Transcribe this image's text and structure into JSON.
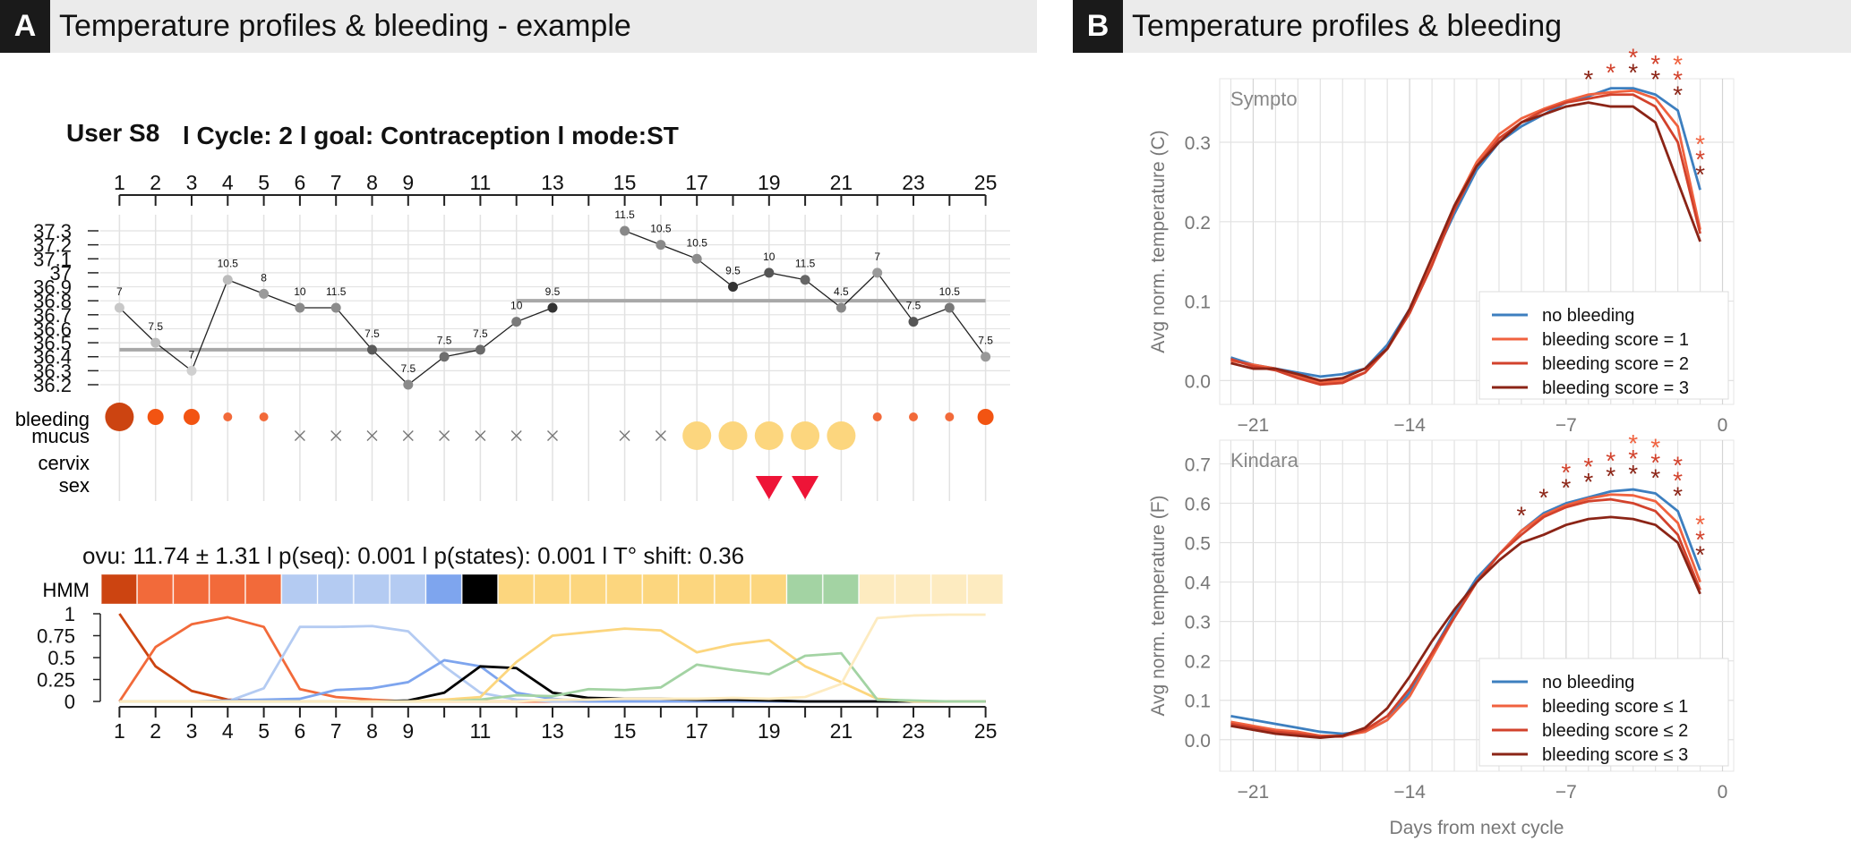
{
  "panelA": {
    "letter": "A",
    "title": "Temperature profiles & bleeding - example",
    "user_line": {
      "user": "User S8",
      "cycle": "l Cycle: 2 l goal: Contraception  l  mode:ST"
    },
    "stats_line": "ovu:  11.74  ±  1.31  l p(seq):  0.001  l p(states):  0.001  l T° shift:  0.36",
    "row_labels": [
      "bleeding",
      "mucus",
      "cervix",
      "sex"
    ],
    "hmm_label": "HMM"
  },
  "panelB": {
    "letter": "B",
    "title": "Temperature profiles & bleeding"
  },
  "chart_data": [
    {
      "id": "cycle_temperature",
      "type": "line",
      "x_ticks_labeled": [
        1,
        2,
        3,
        4,
        5,
        6,
        7,
        8,
        9,
        11,
        13,
        15,
        17,
        19,
        21,
        23,
        25
      ],
      "y_tick_labels": [
        "37.3",
        "37.2",
        "37.1",
        "37",
        "36.9",
        "36.8",
        "36.7",
        "36.6",
        "36.5",
        "36.4",
        "36.3",
        "36.2"
      ],
      "ylim": [
        36.2,
        37.3
      ],
      "days": [
        1,
        2,
        3,
        4,
        5,
        6,
        7,
        8,
        9,
        10,
        11,
        12,
        13,
        15,
        16,
        17,
        18,
        19,
        20,
        21,
        22,
        23,
        24,
        25
      ],
      "temps": [
        36.75,
        36.5,
        36.3,
        36.95,
        36.85,
        36.75,
        36.75,
        36.45,
        36.2,
        36.4,
        36.45,
        36.65,
        36.75,
        37.3,
        37.2,
        37.1,
        36.9,
        37.0,
        36.95,
        36.75,
        37.0,
        36.65,
        36.75,
        36.4
      ],
      "point_labels": [
        "7",
        "7.5",
        "7",
        "10.5",
        "8",
        "10",
        "11.5",
        "7.5",
        "7.5",
        "7.5",
        "7.5",
        "10",
        "9.5",
        "11.5",
        "10.5",
        "10.5",
        "9.5",
        "10",
        "11.5",
        "4.5",
        "7",
        "7.5",
        "10.5",
        "7.5"
      ],
      "point_shades": [
        "#c8c8c8",
        "#bdbdbd",
        "#d0d0d0",
        "#bcbcbc",
        "#9a9a9a",
        "#8a8a8a",
        "#8c8c8c",
        "#5a5a5a",
        "#8a8a8a",
        "#6e6e6e",
        "#6a6a6a",
        "#7a7a7a",
        "#333333",
        "#888888",
        "#8a8a8a",
        "#8c8c8c",
        "#333333",
        "#555555",
        "#666666",
        "#888888",
        "#9a9a9a",
        "#555555",
        "#777777",
        "#999999"
      ],
      "baselines": [
        {
          "from": 1,
          "to": 11,
          "temp": 36.45
        },
        {
          "from": 12,
          "to": 25,
          "temp": 36.8
        }
      ]
    },
    {
      "id": "cycle_observations",
      "type": "table",
      "bleeding": [
        {
          "day": 1,
          "level": 3
        },
        {
          "day": 2,
          "level": 2
        },
        {
          "day": 3,
          "level": 2
        },
        {
          "day": 4,
          "level": 1
        },
        {
          "day": 5,
          "level": 1
        },
        {
          "day": 22,
          "level": 1
        },
        {
          "day": 23,
          "level": 1
        },
        {
          "day": 24,
          "level": 1
        },
        {
          "day": 25,
          "level": 2
        }
      ],
      "mucus_x_days": [
        6,
        7,
        8,
        9,
        10,
        11,
        12,
        13,
        15,
        16
      ],
      "mucus_fertile_days": [
        17,
        18,
        19,
        20,
        21
      ],
      "sex_days": [
        19,
        20
      ]
    },
    {
      "id": "hmm_states",
      "type": "heatmap",
      "cells": [
        "#cc4411",
        "#f26a3a",
        "#f26a3a",
        "#f26a3a",
        "#f26a3a",
        "#b4cbf2",
        "#b4cbf2",
        "#b4cbf2",
        "#b4cbf2",
        "#7ea5ee",
        "#000000",
        "#fcd67e",
        "#fcd67e",
        "#fcd67e",
        "#fcd67e",
        "#fcd67e",
        "#fcd67e",
        "#fcd67e",
        "#fcd67e",
        "#a3d3a3",
        "#a3d3a3",
        "#fdebc0",
        "#fdebc0",
        "#fdebc0",
        "#fdebc0"
      ]
    },
    {
      "id": "hmm_probabilities",
      "type": "line",
      "y_tick_labels": [
        "1",
        "0.75",
        "0.5",
        "0.25",
        "0"
      ],
      "ylim": [
        0,
        1
      ],
      "x_ticks_labeled": [
        1,
        2,
        3,
        4,
        5,
        6,
        7,
        8,
        9,
        11,
        13,
        15,
        17,
        19,
        21,
        23,
        25
      ],
      "series": [
        {
          "color": "#cc4411",
          "values": [
            1,
            0.4,
            0.12,
            0.02,
            0.01,
            0,
            0,
            0,
            0,
            0,
            0,
            0,
            0,
            0,
            0,
            0,
            0,
            0,
            0,
            0,
            0,
            0,
            0,
            0,
            0
          ]
        },
        {
          "color": "#f26a3a",
          "values": [
            0,
            0.62,
            0.88,
            0.96,
            0.85,
            0.14,
            0.05,
            0.02,
            0,
            0,
            0,
            0,
            0,
            0,
            0,
            0,
            0,
            0,
            0,
            0,
            0,
            0,
            0,
            0,
            0
          ]
        },
        {
          "color": "#b4cbf2",
          "values": [
            0,
            0,
            0,
            0,
            0.15,
            0.85,
            0.85,
            0.86,
            0.8,
            0.4,
            0.1,
            0.02,
            0,
            0,
            0,
            0,
            0,
            0,
            0,
            0,
            0,
            0,
            0,
            0,
            0
          ]
        },
        {
          "color": "#7ea5ee",
          "values": [
            0,
            0,
            0,
            0.01,
            0.02,
            0.03,
            0.13,
            0.15,
            0.22,
            0.47,
            0.4,
            0.1,
            0.03,
            0,
            0,
            0,
            0,
            0,
            0,
            0,
            0,
            0,
            0,
            0,
            0
          ]
        },
        {
          "color": "#000000",
          "values": [
            0,
            0,
            0,
            0,
            0,
            0,
            0,
            0,
            0.01,
            0.1,
            0.4,
            0.38,
            0.1,
            0.04,
            0.03,
            0.03,
            0.02,
            0.02,
            0.01,
            0,
            0,
            0,
            0,
            0,
            0
          ]
        },
        {
          "color": "#fcd67e",
          "values": [
            0,
            0,
            0,
            0,
            0,
            0,
            0,
            0,
            0,
            0.02,
            0.05,
            0.45,
            0.75,
            0.79,
            0.83,
            0.81,
            0.56,
            0.65,
            0.7,
            0.4,
            0.22,
            0.03,
            0,
            0,
            0
          ]
        },
        {
          "color": "#a3d3a3",
          "values": [
            0,
            0,
            0,
            0,
            0,
            0,
            0,
            0,
            0,
            0,
            0.02,
            0.07,
            0.06,
            0.14,
            0.13,
            0.16,
            0.42,
            0.36,
            0.31,
            0.52,
            0.55,
            0.02,
            0.01,
            0,
            0
          ]
        },
        {
          "color": "#fdebc0",
          "values": [
            0,
            0,
            0,
            0,
            0,
            0,
            0,
            0,
            0,
            0,
            0,
            0,
            0.02,
            0.02,
            0.03,
            0.03,
            0.03,
            0.04,
            0.03,
            0.05,
            0.2,
            0.95,
            0.98,
            0.99,
            0.99
          ]
        }
      ]
    },
    {
      "id": "sympto",
      "type": "line",
      "title": "Sympto",
      "ylabel": "Avg norm. temperature (C)",
      "ylim": [
        -0.03,
        0.38
      ],
      "y_ticks": [
        0.0,
        0.1,
        0.2,
        0.3
      ],
      "y_tick_labels": [
        "0.0",
        "0.1",
        "0.2",
        "0.3"
      ],
      "xlim": [
        -22.5,
        0.5
      ],
      "x_ticks": [
        -21,
        -14,
        -7,
        0
      ],
      "x_tick_labels": [
        "−21",
        "−14",
        "−7",
        "0"
      ],
      "x": [
        -22,
        -21,
        -20,
        -19,
        -18,
        -17,
        -16,
        -15,
        -14,
        -13,
        -12,
        -11,
        -10,
        -9,
        -8,
        -7,
        -6,
        -5,
        -4,
        -3,
        -2,
        -1
      ],
      "series": [
        {
          "name": "no bleeding",
          "color": "#3d7fbf",
          "values": [
            0.029,
            0.02,
            0.015,
            0.01,
            0.005,
            0.008,
            0.015,
            0.045,
            0.09,
            0.15,
            0.21,
            0.265,
            0.3,
            0.32,
            0.335,
            0.35,
            0.358,
            0.368,
            0.368,
            0.36,
            0.34,
            0.24
          ]
        },
        {
          "name": "bleeding score =  1",
          "color": "#f0623f",
          "values": [
            0.025,
            0.02,
            0.015,
            0.005,
            -0.003,
            0.0,
            0.01,
            0.04,
            0.085,
            0.15,
            0.22,
            0.275,
            0.31,
            0.33,
            0.342,
            0.352,
            0.36,
            0.363,
            0.365,
            0.355,
            0.32,
            0.19
          ]
        },
        {
          "name": "bleeding score =  2",
          "color": "#d2422c",
          "values": [
            0.027,
            0.018,
            0.013,
            0.003,
            -0.005,
            -0.003,
            0.01,
            0.04,
            0.085,
            0.145,
            0.215,
            0.27,
            0.305,
            0.325,
            0.34,
            0.35,
            0.355,
            0.36,
            0.36,
            0.345,
            0.3,
            0.185
          ]
        },
        {
          "name": "bleeding score =  3",
          "color": "#8b2416",
          "values": [
            0.022,
            0.015,
            0.015,
            0.008,
            0.0,
            0.003,
            0.015,
            0.04,
            0.09,
            0.155,
            0.22,
            0.27,
            0.3,
            0.325,
            0.335,
            0.345,
            0.35,
            0.345,
            0.345,
            0.325,
            0.25,
            0.175
          ]
        }
      ],
      "asterisks": [
        {
          "x": -6,
          "colors": [
            "#8b2416"
          ]
        },
        {
          "x": -5,
          "colors": [
            "#d2422c"
          ]
        },
        {
          "x": -4,
          "colors": [
            "#d2422c",
            "#8b2416"
          ]
        },
        {
          "x": -3,
          "colors": [
            "#d2422c",
            "#8b2416"
          ]
        },
        {
          "x": -2,
          "colors": [
            "#f0623f",
            "#d2422c",
            "#8b2416"
          ]
        },
        {
          "x": -1,
          "colors": [
            "#f0623f",
            "#d2422c",
            "#8b2416"
          ]
        }
      ],
      "legend": "bottom-right"
    },
    {
      "id": "kindara",
      "type": "line",
      "title": "Kindara",
      "ylabel": "Avg norm. temperature (F)",
      "xlabel": "Days from next cycle",
      "ylim": [
        -0.08,
        0.76
      ],
      "y_ticks": [
        0.0,
        0.1,
        0.2,
        0.3,
        0.4,
        0.5,
        0.6,
        0.7
      ],
      "y_tick_labels": [
        "0.0",
        "0.1",
        "0.2",
        "0.3",
        "0.4",
        "0.5",
        "0.6",
        "0.7"
      ],
      "xlim": [
        -22.5,
        0.5
      ],
      "x_ticks": [
        -21,
        -14,
        -7,
        0
      ],
      "x_tick_labels": [
        "−21",
        "−14",
        "−7",
        "0"
      ],
      "x": [
        -22,
        -21,
        -20,
        -19,
        -18,
        -17,
        -16,
        -15,
        -14,
        -13,
        -12,
        -11,
        -10,
        -9,
        -8,
        -7,
        -6,
        -5,
        -4,
        -3,
        -2,
        -1
      ],
      "series": [
        {
          "name": "no bleeding",
          "color": "#3d7fbf",
          "values": [
            0.06,
            0.05,
            0.04,
            0.03,
            0.02,
            0.015,
            0.02,
            0.05,
            0.12,
            0.22,
            0.32,
            0.41,
            0.47,
            0.53,
            0.575,
            0.6,
            0.615,
            0.63,
            0.635,
            0.625,
            0.58,
            0.43
          ]
        },
        {
          "name": "bleeding score ≤ 1",
          "color": "#f0623f",
          "values": [
            0.045,
            0.035,
            0.025,
            0.02,
            0.01,
            0.01,
            0.02,
            0.05,
            0.11,
            0.21,
            0.31,
            0.4,
            0.47,
            0.53,
            0.57,
            0.595,
            0.612,
            0.622,
            0.62,
            0.605,
            0.55,
            0.4
          ]
        },
        {
          "name": "bleeding score ≤ 2",
          "color": "#d2422c",
          "values": [
            0.04,
            0.03,
            0.02,
            0.015,
            0.008,
            0.008,
            0.025,
            0.06,
            0.13,
            0.22,
            0.31,
            0.4,
            0.47,
            0.52,
            0.565,
            0.59,
            0.605,
            0.61,
            0.6,
            0.58,
            0.52,
            0.38
          ]
        },
        {
          "name": "bleeding score ≤ 3",
          "color": "#8b2416",
          "values": [
            0.035,
            0.025,
            0.015,
            0.01,
            0.005,
            0.01,
            0.03,
            0.08,
            0.16,
            0.25,
            0.33,
            0.4,
            0.455,
            0.5,
            0.52,
            0.545,
            0.56,
            0.565,
            0.56,
            0.545,
            0.5,
            0.37
          ]
        }
      ],
      "asterisks": [
        {
          "x": -9,
          "colors": [
            "#8b2416"
          ]
        },
        {
          "x": -8,
          "colors": [
            "#8b2416"
          ]
        },
        {
          "x": -7,
          "colors": [
            "#d2422c",
            "#8b2416"
          ]
        },
        {
          "x": -6,
          "colors": [
            "#d2422c",
            "#8b2416"
          ]
        },
        {
          "x": -5,
          "colors": [
            "#d2422c",
            "#8b2416"
          ]
        },
        {
          "x": -4,
          "colors": [
            "#f0623f",
            "#d2422c",
            "#8b2416"
          ]
        },
        {
          "x": -3,
          "colors": [
            "#f0623f",
            "#d2422c",
            "#8b2416"
          ]
        },
        {
          "x": -2,
          "colors": [
            "#d2422c",
            "#d2422c",
            "#8b2416"
          ]
        },
        {
          "x": -1,
          "colors": [
            "#f0623f",
            "#d2422c",
            "#8b2416"
          ]
        }
      ],
      "legend": "bottom-right"
    }
  ]
}
